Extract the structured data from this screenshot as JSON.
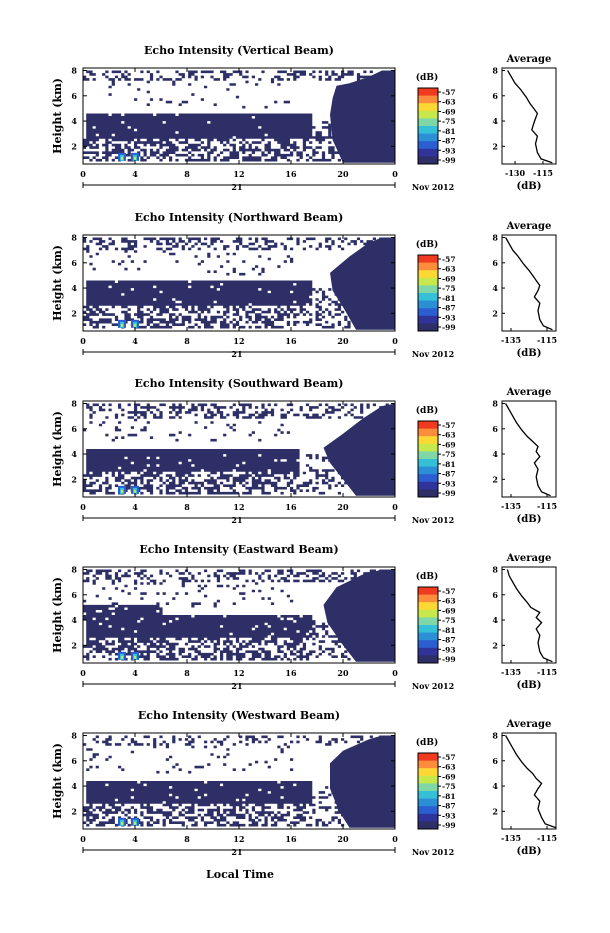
{
  "figure": {
    "xaxis_date": "Nov 2012",
    "xaxis_day": "21",
    "xaxis_label": "Local Time",
    "colorbar_unit": "(dB)",
    "colorbar_ticks": [
      "-57",
      "-63",
      "-69",
      "-75",
      "-81",
      "-87",
      "-93",
      "-99"
    ],
    "colorbar_colors": [
      "#f03b20",
      "#fd8d3c",
      "#fdd835",
      "#c6e84b",
      "#7fd7a8",
      "#35c0d8",
      "#2a8fd4",
      "#2b5fd1",
      "#30339a",
      "#2d2f66"
    ],
    "fill_color": "#2d2f66",
    "avg_title": "Average",
    "avg_xlabel": "(dB)"
  },
  "panels": [
    {
      "title": "Echo Intensity (Vertical Beam)",
      "avg_xticks": [
        "-130",
        "-115"
      ]
    },
    {
      "title": "Echo Intensity (Northward Beam)",
      "avg_xticks": [
        "-135",
        "-115"
      ]
    },
    {
      "title": "Echo Intensity (Southward Beam)",
      "avg_xticks": [
        "-135",
        "-115"
      ]
    },
    {
      "title": "Echo Intensity (Eastward Beam)",
      "avg_xticks": [
        "-135",
        "-115"
      ]
    },
    {
      "title": "Echo Intensity (Westward Beam)",
      "avg_xticks": [
        "-135",
        "-115"
      ]
    }
  ],
  "chart_data": [
    {
      "type": "heatmap",
      "title": "Echo Intensity (Vertical Beam)",
      "ylabel": "Height (km)",
      "xticks": [
        "0",
        "4",
        "8",
        "12",
        "16",
        "20",
        "0"
      ],
      "yticks": [
        "2",
        "4",
        "6",
        "8"
      ],
      "xlim": [
        0,
        24
      ],
      "ylim": [
        0.6,
        8.2
      ],
      "colorbar": {
        "unit": "(dB)",
        "range": [
          -99,
          -57
        ],
        "ticks": [
          -57,
          -63,
          -69,
          -75,
          -81,
          -87,
          -93,
          -99
        ]
      },
      "echo_regions": [
        {
          "x0": 0,
          "x1": 24,
          "y0": 7.2,
          "y1": 8.0,
          "density": 0.35
        },
        {
          "x0": 0,
          "x1": 16,
          "y0": 5.0,
          "y1": 7.2,
          "density": 0.05
        },
        {
          "x0": 0.2,
          "x1": 17.5,
          "y0": 2.6,
          "y1": 4.5,
          "density": 0.97
        },
        {
          "x0": 0,
          "x1": 17,
          "y0": 0.7,
          "y1": 2.5,
          "density": 0.5
        },
        {
          "x0": 17,
          "x1": 20.5,
          "y0": 0.7,
          "y1": 4.0,
          "density": 0.4
        }
      ],
      "solid_region": [
        [
          19.5,
          6.8
        ],
        [
          20.5,
          7.0
        ],
        [
          22.0,
          7.5
        ],
        [
          23.0,
          8.0
        ],
        [
          24.0,
          8.0
        ],
        [
          24.0,
          0.7
        ],
        [
          20.0,
          0.7
        ],
        [
          19.2,
          2.5
        ],
        [
          19.0,
          4.5
        ],
        [
          19.2,
          5.8
        ]
      ],
      "hot_spots": [
        {
          "x": 3,
          "y": 0.85
        },
        {
          "x": 4,
          "y": 0.85
        }
      ],
      "average_profile": {
        "title": "Average",
        "xlabel": "(dB)",
        "xticks": [
          -130,
          -115
        ],
        "xlim": [
          -137,
          -108
        ],
        "ylim": [
          0.6,
          8.2
        ],
        "yticks": [
          2,
          4,
          6,
          8
        ],
        "x": [
          -110,
          -116,
          -118,
          -119,
          -118,
          -121,
          -120,
          -119,
          -118,
          -120,
          -122,
          -124,
          -127,
          -130,
          -132,
          -134
        ],
        "y": [
          0.7,
          1.0,
          1.5,
          2.2,
          2.8,
          3.3,
          3.8,
          4.2,
          4.6,
          5.0,
          5.4,
          5.9,
          6.5,
          7.0,
          7.5,
          8.0
        ]
      }
    },
    {
      "type": "heatmap",
      "title": "Echo Intensity (Northward Beam)",
      "ylabel": "Height (km)",
      "xticks": [
        "0",
        "4",
        "8",
        "12",
        "16",
        "20",
        "0"
      ],
      "yticks": [
        "2",
        "4",
        "6",
        "8"
      ],
      "xlim": [
        0,
        24
      ],
      "ylim": [
        0.6,
        8.2
      ],
      "colorbar": {
        "unit": "(dB)",
        "range": [
          -99,
          -57
        ],
        "ticks": [
          -57,
          -63,
          -69,
          -75,
          -81,
          -87,
          -93,
          -99
        ]
      },
      "echo_regions": [
        {
          "x0": 0,
          "x1": 24,
          "y0": 7.0,
          "y1": 8.0,
          "density": 0.35
        },
        {
          "x0": 0,
          "x1": 16,
          "y0": 5.0,
          "y1": 7.0,
          "density": 0.07
        },
        {
          "x0": 0.2,
          "x1": 17.5,
          "y0": 2.6,
          "y1": 4.5,
          "density": 0.97
        },
        {
          "x0": 0,
          "x1": 17,
          "y0": 0.7,
          "y1": 2.5,
          "density": 0.45
        },
        {
          "x0": 17,
          "x1": 20.5,
          "y0": 0.7,
          "y1": 4.0,
          "density": 0.35
        }
      ],
      "solid_region": [
        [
          19.0,
          5.2
        ],
        [
          20.5,
          6.5
        ],
        [
          22.0,
          7.6
        ],
        [
          23.0,
          8.0
        ],
        [
          24.0,
          8.0
        ],
        [
          24.0,
          0.7
        ],
        [
          21.0,
          0.7
        ],
        [
          20.0,
          2.5
        ],
        [
          19.2,
          3.8
        ]
      ],
      "hot_spots": [
        {
          "x": 3,
          "y": 0.85
        },
        {
          "x": 4,
          "y": 0.85
        }
      ],
      "average_profile": {
        "title": "Average",
        "xlabel": "(dB)",
        "xticks": [
          -135,
          -115
        ],
        "xlim": [
          -140,
          -110
        ],
        "ylim": [
          0.6,
          8.2
        ],
        "yticks": [
          2,
          4,
          6,
          8
        ],
        "x": [
          -112,
          -117,
          -119,
          -120,
          -119,
          -122,
          -120,
          -119,
          -121,
          -123,
          -125,
          -128,
          -131,
          -134,
          -136,
          -138
        ],
        "y": [
          0.7,
          1.0,
          1.5,
          2.2,
          2.8,
          3.3,
          3.8,
          4.2,
          4.6,
          5.0,
          5.4,
          5.9,
          6.5,
          7.0,
          7.5,
          8.0
        ]
      }
    },
    {
      "type": "heatmap",
      "title": "Echo Intensity (Southward Beam)",
      "ylabel": "Height (km)",
      "xticks": [
        "0",
        "4",
        "8",
        "12",
        "16",
        "20",
        "0"
      ],
      "yticks": [
        "2",
        "4",
        "6",
        "8"
      ],
      "xlim": [
        0,
        24
      ],
      "ylim": [
        0.6,
        8.2
      ],
      "colorbar": {
        "unit": "(dB)",
        "range": [
          -99,
          -57
        ],
        "ticks": [
          -57,
          -63,
          -69,
          -75,
          -81,
          -87,
          -93,
          -99
        ]
      },
      "echo_regions": [
        {
          "x0": 0,
          "x1": 24,
          "y0": 6.8,
          "y1": 8.0,
          "density": 0.35
        },
        {
          "x0": 0,
          "x1": 16,
          "y0": 5.0,
          "y1": 6.8,
          "density": 0.07
        },
        {
          "x0": 0.2,
          "x1": 16.5,
          "y0": 2.6,
          "y1": 4.4,
          "density": 0.95
        },
        {
          "x0": 0,
          "x1": 17,
          "y0": 0.7,
          "y1": 2.5,
          "density": 0.5
        },
        {
          "x0": 17,
          "x1": 20.5,
          "y0": 0.7,
          "y1": 4.0,
          "density": 0.3
        }
      ],
      "solid_region": [
        [
          18.5,
          4.5
        ],
        [
          20.0,
          5.6
        ],
        [
          21.5,
          6.8
        ],
        [
          23.0,
          7.8
        ],
        [
          24.0,
          8.0
        ],
        [
          24.0,
          0.7
        ],
        [
          21.0,
          0.7
        ],
        [
          20.0,
          2.0
        ],
        [
          19.0,
          3.3
        ]
      ],
      "hot_spots": [
        {
          "x": 3,
          "y": 0.85
        },
        {
          "x": 4,
          "y": 0.85
        }
      ],
      "average_profile": {
        "title": "Average",
        "xlabel": "(dB)",
        "xticks": [
          -135,
          -115
        ],
        "xlim": [
          -140,
          -110
        ],
        "ylim": [
          0.6,
          8.2
        ],
        "yticks": [
          2,
          4,
          6,
          8
        ],
        "x": [
          -113,
          -118,
          -120,
          -121,
          -120,
          -122,
          -119,
          -121,
          -120,
          -123,
          -126,
          -129,
          -132,
          -134,
          -136,
          -138
        ],
        "y": [
          0.7,
          1.0,
          1.5,
          2.2,
          2.8,
          3.3,
          3.8,
          4.2,
          4.6,
          5.0,
          5.4,
          5.9,
          6.5,
          7.0,
          7.5,
          8.0
        ]
      }
    },
    {
      "type": "heatmap",
      "title": "Echo Intensity (Eastward Beam)",
      "ylabel": "Height (km)",
      "xticks": [
        "0",
        "4",
        "8",
        "12",
        "16",
        "20",
        "0"
      ],
      "yticks": [
        "2",
        "4",
        "6",
        "8"
      ],
      "xlim": [
        0,
        24
      ],
      "ylim": [
        0.6,
        8.2
      ],
      "colorbar": {
        "unit": "(dB)",
        "range": [
          -99,
          -57
        ],
        "ticks": [
          -57,
          -63,
          -69,
          -75,
          -81,
          -87,
          -93,
          -99
        ]
      },
      "echo_regions": [
        {
          "x0": 0,
          "x1": 24,
          "y0": 7.0,
          "y1": 8.0,
          "density": 0.4
        },
        {
          "x0": 0,
          "x1": 16,
          "y0": 5.0,
          "y1": 7.0,
          "density": 0.08
        },
        {
          "x0": 0,
          "x1": 6,
          "y0": 4.0,
          "y1": 5.2,
          "density": 0.9
        },
        {
          "x0": 0.2,
          "x1": 17.5,
          "y0": 2.6,
          "y1": 4.4,
          "density": 0.95
        },
        {
          "x0": 0,
          "x1": 17,
          "y0": 0.7,
          "y1": 2.5,
          "density": 0.5
        },
        {
          "x0": 17,
          "x1": 20.5,
          "y0": 0.7,
          "y1": 4.0,
          "density": 0.35
        }
      ],
      "solid_region": [
        [
          18.5,
          5.2
        ],
        [
          19.5,
          6.6
        ],
        [
          21.5,
          7.6
        ],
        [
          23.0,
          8.0
        ],
        [
          24.0,
          8.0
        ],
        [
          24.0,
          0.7
        ],
        [
          21.0,
          0.7
        ],
        [
          20.0,
          2.0
        ],
        [
          18.8,
          3.8
        ]
      ],
      "hot_spots": [
        {
          "x": 3,
          "y": 0.85
        },
        {
          "x": 4,
          "y": 0.85
        }
      ],
      "average_profile": {
        "title": "Average",
        "xlabel": "(dB)",
        "xticks": [
          -135,
          -115
        ],
        "xlim": [
          -140,
          -110
        ],
        "ylim": [
          0.6,
          8.2
        ],
        "yticks": [
          2,
          4,
          6,
          8
        ],
        "x": [
          -112,
          -117,
          -119,
          -120,
          -119,
          -121,
          -118,
          -121,
          -119,
          -124,
          -126,
          -129,
          -132,
          -134,
          -136,
          -137
        ],
        "y": [
          0.7,
          1.0,
          1.5,
          2.2,
          2.8,
          3.3,
          3.8,
          4.2,
          4.6,
          5.0,
          5.4,
          5.9,
          6.5,
          7.0,
          7.5,
          8.0
        ]
      }
    },
    {
      "type": "heatmap",
      "title": "Echo Intensity (Westward Beam)",
      "ylabel": "Height (km)",
      "xticks": [
        "0",
        "4",
        "8",
        "12",
        "16",
        "20",
        "0"
      ],
      "yticks": [
        "2",
        "4",
        "6",
        "8"
      ],
      "xlim": [
        0,
        24
      ],
      "ylim": [
        0.6,
        8.2
      ],
      "colorbar": {
        "unit": "(dB)",
        "range": [
          -99,
          -57
        ],
        "ticks": [
          -57,
          -63,
          -69,
          -75,
          -81,
          -87,
          -93,
          -99
        ]
      },
      "echo_regions": [
        {
          "x0": 0,
          "x1": 24,
          "y0": 7.2,
          "y1": 8.0,
          "density": 0.3
        },
        {
          "x0": 0,
          "x1": 16,
          "y0": 5.0,
          "y1": 7.2,
          "density": 0.05
        },
        {
          "x0": 0.2,
          "x1": 17.5,
          "y0": 2.6,
          "y1": 4.4,
          "density": 0.97
        },
        {
          "x0": 0,
          "x1": 17,
          "y0": 0.7,
          "y1": 2.5,
          "density": 0.5
        },
        {
          "x0": 17,
          "x1": 20.5,
          "y0": 0.7,
          "y1": 4.0,
          "density": 0.3
        }
      ],
      "solid_region": [
        [
          19.0,
          5.8
        ],
        [
          20.0,
          6.8
        ],
        [
          22.0,
          7.7
        ],
        [
          23.0,
          8.0
        ],
        [
          24.0,
          8.0
        ],
        [
          24.0,
          0.7
        ],
        [
          20.5,
          0.7
        ],
        [
          19.7,
          2.0
        ],
        [
          19.0,
          3.8
        ]
      ],
      "hot_spots": [
        {
          "x": 3,
          "y": 0.85
        },
        {
          "x": 4,
          "y": 0.85
        }
      ],
      "average_profile": {
        "title": "Average",
        "xlabel": "(dB)",
        "xticks": [
          -135,
          -115
        ],
        "xlim": [
          -140,
          -110
        ],
        "ylim": [
          0.6,
          8.2
        ],
        "yticks": [
          2,
          4,
          6,
          8
        ],
        "x": [
          -110,
          -116,
          -118,
          -120,
          -119,
          -122,
          -120,
          -118,
          -121,
          -123,
          -126,
          -129,
          -132,
          -134,
          -136,
          -138
        ],
        "y": [
          0.7,
          1.0,
          1.5,
          2.2,
          2.8,
          3.3,
          3.8,
          4.2,
          4.6,
          5.0,
          5.4,
          5.9,
          6.5,
          7.0,
          7.5,
          8.0
        ]
      }
    }
  ]
}
